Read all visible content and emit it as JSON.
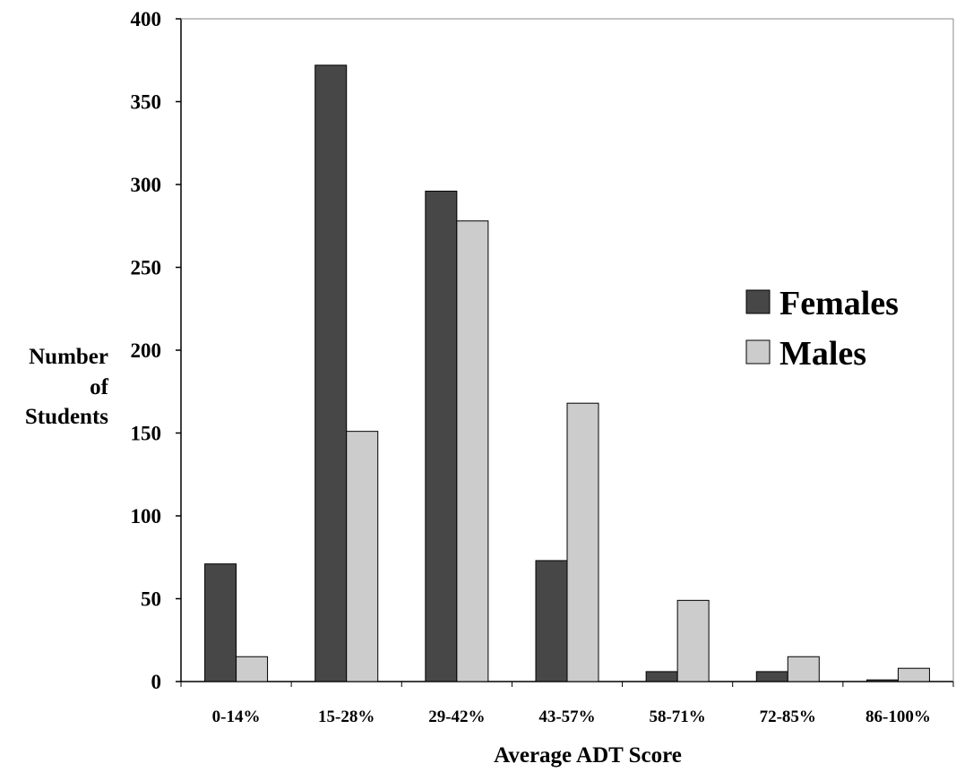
{
  "chart_data": {
    "type": "bar",
    "title": "",
    "xlabel": "Average ADT Score",
    "ylabel_lines": [
      "Number",
      "of",
      "Students"
    ],
    "categories": [
      "0-14%",
      "15-28%",
      "29-42%",
      "43-57%",
      "58-71%",
      "72-85%",
      "86-100%"
    ],
    "series": [
      {
        "name": "Females",
        "color": "#474747",
        "values": [
          71,
          372,
          296,
          73,
          6,
          6,
          1
        ]
      },
      {
        "name": "Males",
        "color": "#cccccc",
        "values": [
          15,
          151,
          278,
          168,
          49,
          15,
          8
        ]
      }
    ],
    "ylim": [
      0,
      400
    ],
    "yticks": [
      0,
      50,
      100,
      150,
      200,
      250,
      300,
      350,
      400
    ],
    "grid": false,
    "legend_position": "right"
  }
}
